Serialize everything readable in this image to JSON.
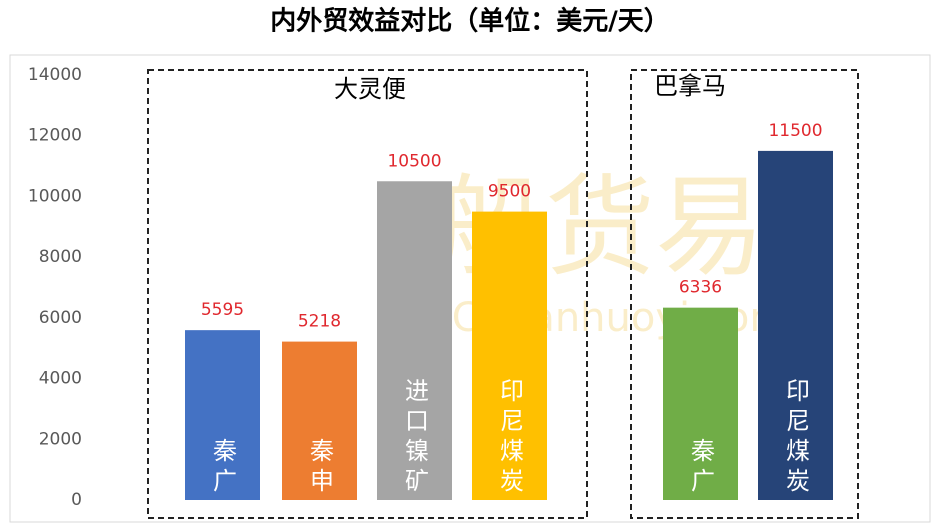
{
  "chart_data": {
    "type": "bar",
    "title": "内外贸效益对比（单位：美元/天）",
    "categories": [
      "秦广",
      "秦申",
      "进口镍矿",
      "印尼煤炭",
      "秦广",
      "印尼煤炭"
    ],
    "values": [
      5595,
      5218,
      10500,
      9500,
      6336,
      11500
    ],
    "colors": [
      "#4472c4",
      "#ed7d31",
      "#a5a5a5",
      "#ffc000",
      "#70ad47",
      "#264478"
    ],
    "groups": [
      {
        "name": "大灵便",
        "count": 4
      },
      {
        "name": "巴拿马",
        "count": 2
      }
    ],
    "ylim": [
      0,
      14000
    ],
    "yticks": [
      0,
      2000,
      4000,
      6000,
      8000,
      10000,
      12000,
      14000
    ],
    "watermark": {
      "text": "船货易",
      "url": "Chuanhuoyi.com"
    }
  }
}
